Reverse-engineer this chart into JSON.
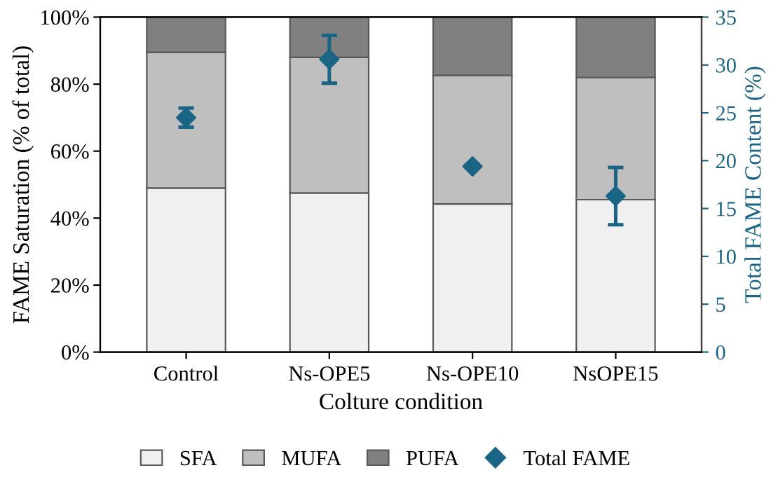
{
  "chart_data": {
    "type": "bar",
    "stacked": true,
    "xlabel": "Colture condition",
    "ylabel": "FAME Saturation (% of total)",
    "y2label": "Total FAME Content (%)",
    "categories": [
      "Control",
      "Ns-OPE5",
      "Ns-OPE10",
      "NsOPE15"
    ],
    "series": [
      {
        "name": "SFA",
        "color": "#f0f0f0",
        "values": [
          49,
          47.5,
          44.2,
          45.5
        ]
      },
      {
        "name": "MUFA",
        "color": "#bfbfbf",
        "values": [
          40.5,
          40.5,
          38.4,
          36.5
        ]
      },
      {
        "name": "PUFA",
        "color": "#808080",
        "values": [
          10.5,
          12,
          17.4,
          18
        ]
      },
      {
        "name": "Total FAME",
        "type": "scatter",
        "axis": "y2",
        "marker": "diamond",
        "color": "#1a6485",
        "values": [
          24.5,
          30.6,
          19.4,
          16.3
        ],
        "errors": [
          1,
          2.5,
          null,
          3
        ]
      }
    ],
    "ylim": [
      0,
      100
    ],
    "yticks": [
      {
        "value": 0,
        "label": "0%"
      },
      {
        "value": 20,
        "label": "20%"
      },
      {
        "value": 40,
        "label": "40%"
      },
      {
        "value": 60,
        "label": "60%"
      },
      {
        "value": 80,
        "label": "80%"
      },
      {
        "value": 100,
        "label": "100%"
      }
    ],
    "y2lim": [
      0,
      35
    ],
    "y2ticks": [
      0,
      5,
      10,
      15,
      20,
      25,
      30,
      35
    ],
    "legend": "bottom",
    "grid": false
  }
}
